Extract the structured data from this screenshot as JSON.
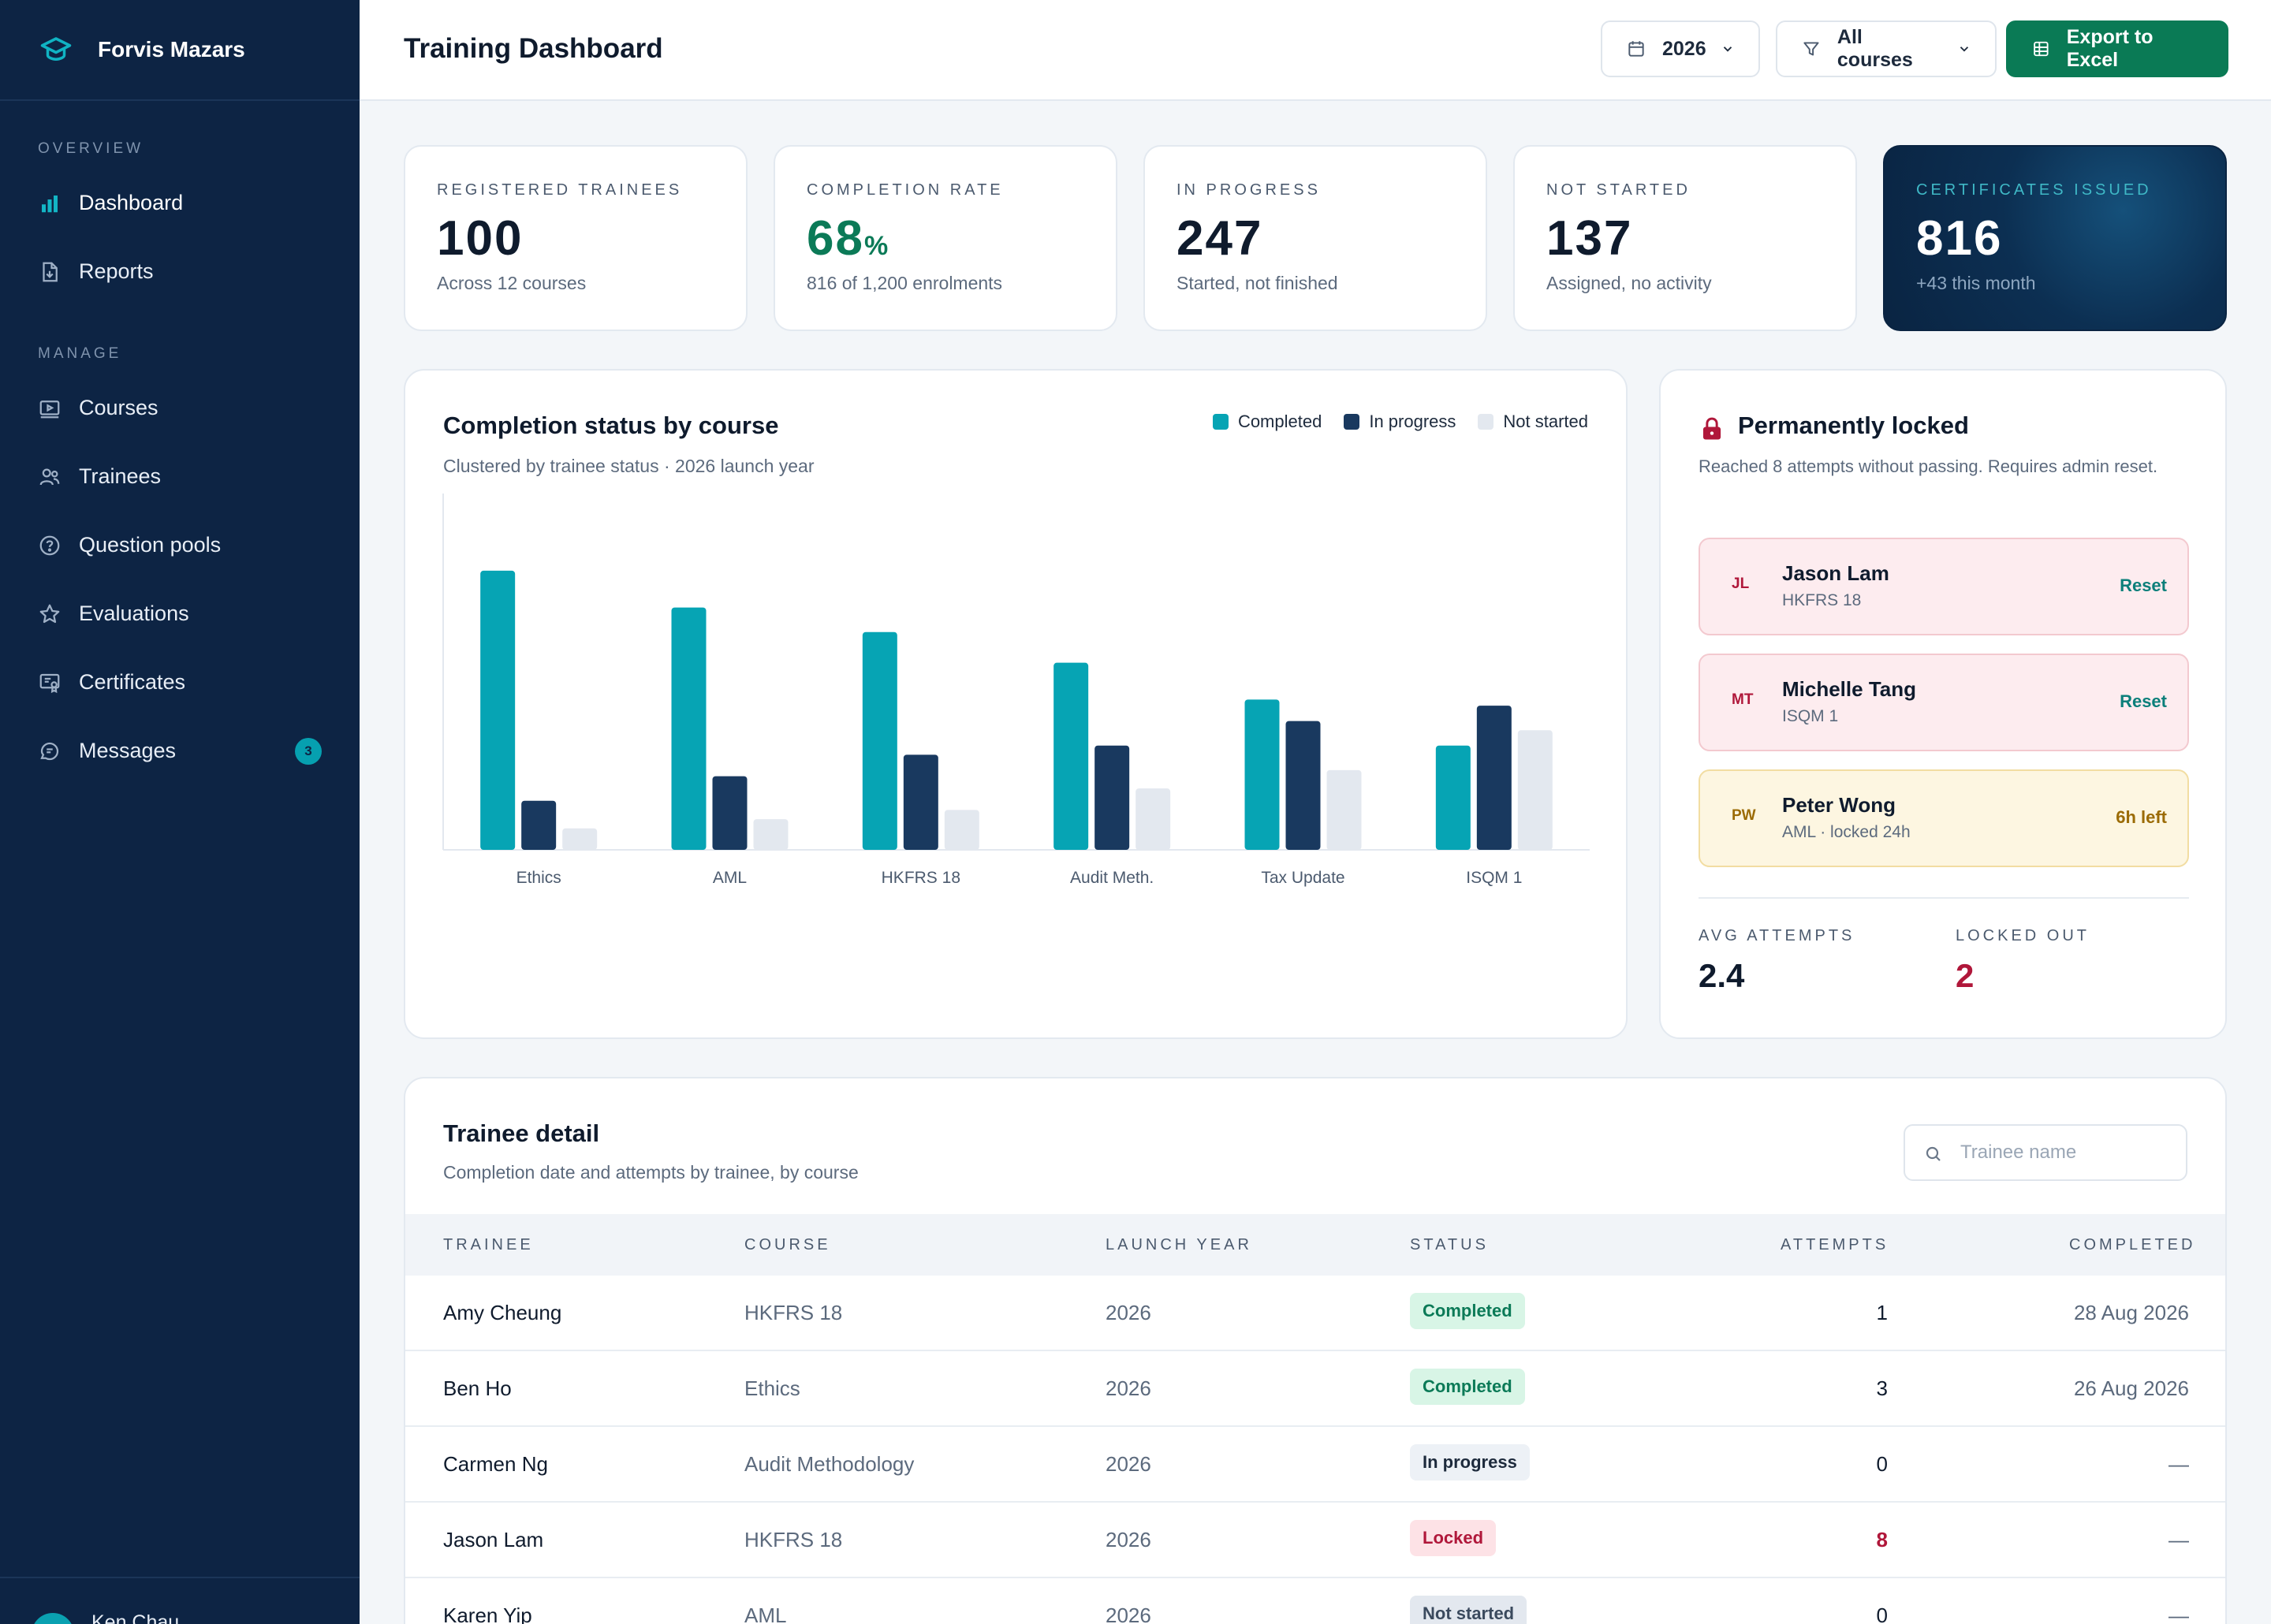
{
  "brand": {
    "name": "Forvis Mazars"
  },
  "sidebar": {
    "sections": [
      "OVERVIEW",
      "MANAGE"
    ],
    "items": [
      {
        "label": "Dashboard",
        "icon": "bar-chart-icon",
        "active": true
      },
      {
        "label": "Reports",
        "icon": "report-file-icon"
      },
      {
        "label": "Courses",
        "icon": "course-play-icon"
      },
      {
        "label": "Trainees",
        "icon": "users-icon"
      },
      {
        "label": "Question pools",
        "icon": "question-circle-icon"
      },
      {
        "label": "Evaluations",
        "icon": "star-icon"
      },
      {
        "label": "Certificates",
        "icon": "certificate-icon"
      },
      {
        "label": "Messages",
        "icon": "chat-icon",
        "badge": "3"
      }
    ],
    "user": {
      "name": "Ken Chau"
    }
  },
  "header": {
    "title": "Training Dashboard",
    "year_filter": "2026",
    "course_filter": "All courses",
    "export_label": "Export to Excel"
  },
  "kpis": [
    {
      "label": "REGISTERED TRAINEES",
      "value": "100",
      "unit": "",
      "sub": "Across 12 courses"
    },
    {
      "label": "COMPLETION RATE",
      "value": "68",
      "unit": "%",
      "sub": "816 of 1,200 enrolments"
    },
    {
      "label": "IN PROGRESS",
      "value": "247",
      "unit": "",
      "sub": "Started, not finished"
    },
    {
      "label": "NOT STARTED",
      "value": "137",
      "unit": "",
      "sub": "Assigned, no activity"
    },
    {
      "label": "CERTIFICATES ISSUED",
      "value": "816",
      "unit": "",
      "sub": "+43 this month"
    }
  ],
  "chart": {
    "title": "Completion status by course",
    "subtitle": "Clustered by trainee status · 2026 launch year"
  },
  "chart_data": {
    "type": "bar",
    "categories": [
      "Ethics",
      "AML",
      "HKFRS 18",
      "Audit Meth.",
      "Tax Update",
      "ISQM 1"
    ],
    "series": [
      {
        "name": "Completed",
        "color": "#06a4b4",
        "values": [
          91,
          79,
          71,
          61,
          49,
          34
        ]
      },
      {
        "name": "In progress",
        "color": "#19395f",
        "values": [
          16,
          24,
          31,
          34,
          42,
          47
        ]
      },
      {
        "name": "Not started",
        "color": "#e3e8ef",
        "values": [
          7,
          10,
          13,
          20,
          26,
          39
        ]
      }
    ],
    "ylim": [
      0,
      110
    ],
    "legend": "top-right",
    "grid": false
  },
  "locked": {
    "title": "Permanently locked",
    "subtitle": "Reached 8 attempts without passing. Requires admin reset.",
    "items": [
      {
        "initials": "JL",
        "name": "Jason Lam",
        "course": "HKFRS 18",
        "action": "Reset",
        "tone": "danger"
      },
      {
        "initials": "MT",
        "name": "Michelle Tang",
        "course": "ISQM 1",
        "action": "Reset",
        "tone": "danger"
      },
      {
        "initials": "PW",
        "name": "Peter Wong",
        "course": "AML · locked 24h",
        "action": "6h left",
        "tone": "warn"
      }
    ],
    "stats": [
      {
        "label": "AVG ATTEMPTS",
        "value": "2.4"
      },
      {
        "label": "LOCKED OUT",
        "value": "2"
      }
    ]
  },
  "table": {
    "title": "Trainee detail",
    "subtitle": "Completion date and attempts by trainee, by course",
    "search_placeholder": "Trainee name",
    "columns": [
      "TRAINEE",
      "COURSE",
      "LAUNCH YEAR",
      "STATUS",
      "ATTEMPTS",
      "COMPLETED"
    ],
    "rows": [
      {
        "trainee": "Amy Cheung",
        "course": "HKFRS 18",
        "year": "2026",
        "status": "Completed",
        "attempts": "1",
        "completed": "28 Aug 2026"
      },
      {
        "trainee": "Ben Ho",
        "course": "Ethics",
        "year": "2026",
        "status": "Completed",
        "attempts": "3",
        "completed": "26 Aug 2026"
      },
      {
        "trainee": "Carmen Ng",
        "course": "Audit Methodology",
        "year": "2026",
        "status": "In progress",
        "attempts": "0",
        "completed": "—"
      },
      {
        "trainee": "Jason Lam",
        "course": "HKFRS 18",
        "year": "2026",
        "status": "Locked",
        "attempts": "8",
        "completed": "—"
      },
      {
        "trainee": "Karen Yip",
        "course": "AML",
        "year": "2026",
        "status": "Not started",
        "attempts": "0",
        "completed": "—"
      }
    ]
  }
}
